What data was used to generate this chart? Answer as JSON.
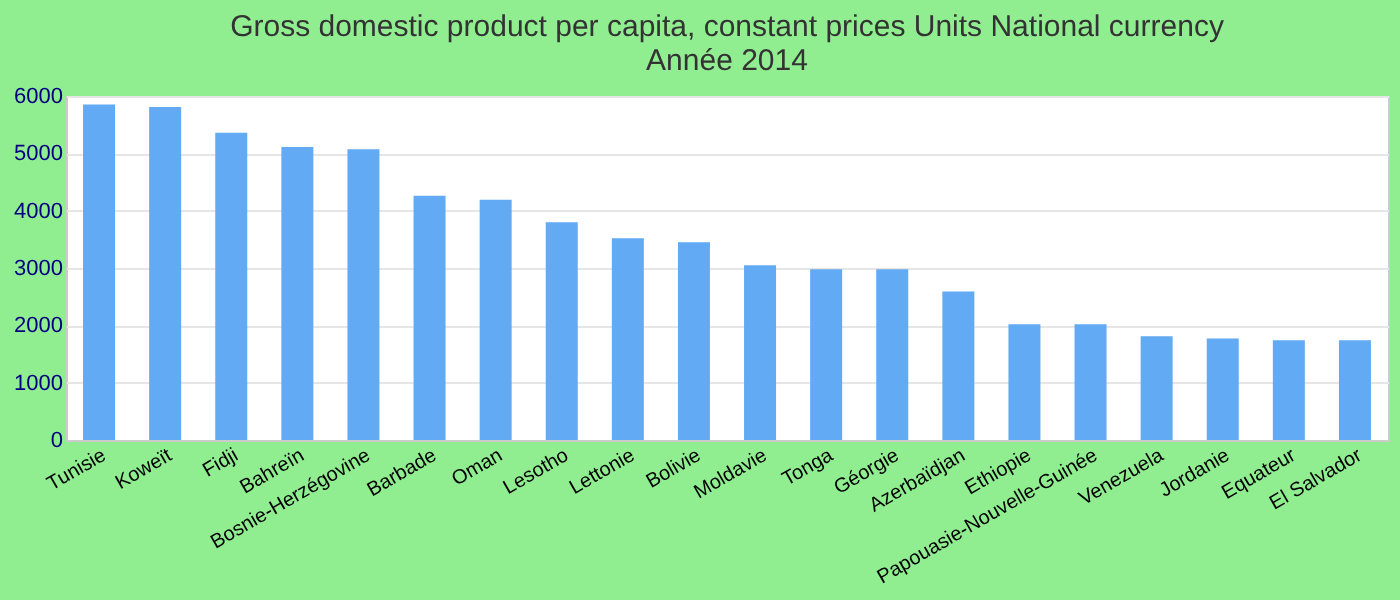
{
  "chart_data": {
    "type": "bar",
    "title": [
      "Gross domestic product per capita, constant prices Units National currency",
      "Année 2014"
    ],
    "categories": [
      "Tunisie",
      "Koweït",
      "Fidji",
      "Bahreïn",
      "Bosnie-Herzégovine",
      "Barbade",
      "Oman",
      "Lesotho",
      "Lettonie",
      "Bolivie",
      "Moldavie",
      "Tonga",
      "Géorgie",
      "Azerbaïdjan",
      "Ethiopie",
      "Papouasie-Nouvelle-Guinée",
      "Venezuela",
      "Jordanie",
      "Equateur",
      "El Salvador"
    ],
    "values": [
      5850,
      5810,
      5360,
      5110,
      5070,
      4260,
      4190,
      3800,
      3520,
      3450,
      3050,
      2980,
      2980,
      2590,
      2020,
      2020,
      1810,
      1770,
      1740,
      1740
    ],
    "color": "#62aaf4",
    "ylim": [
      0,
      6000
    ],
    "yticks": [
      0,
      1000,
      2000,
      3000,
      4000,
      5000,
      6000
    ],
    "grid": "y"
  }
}
